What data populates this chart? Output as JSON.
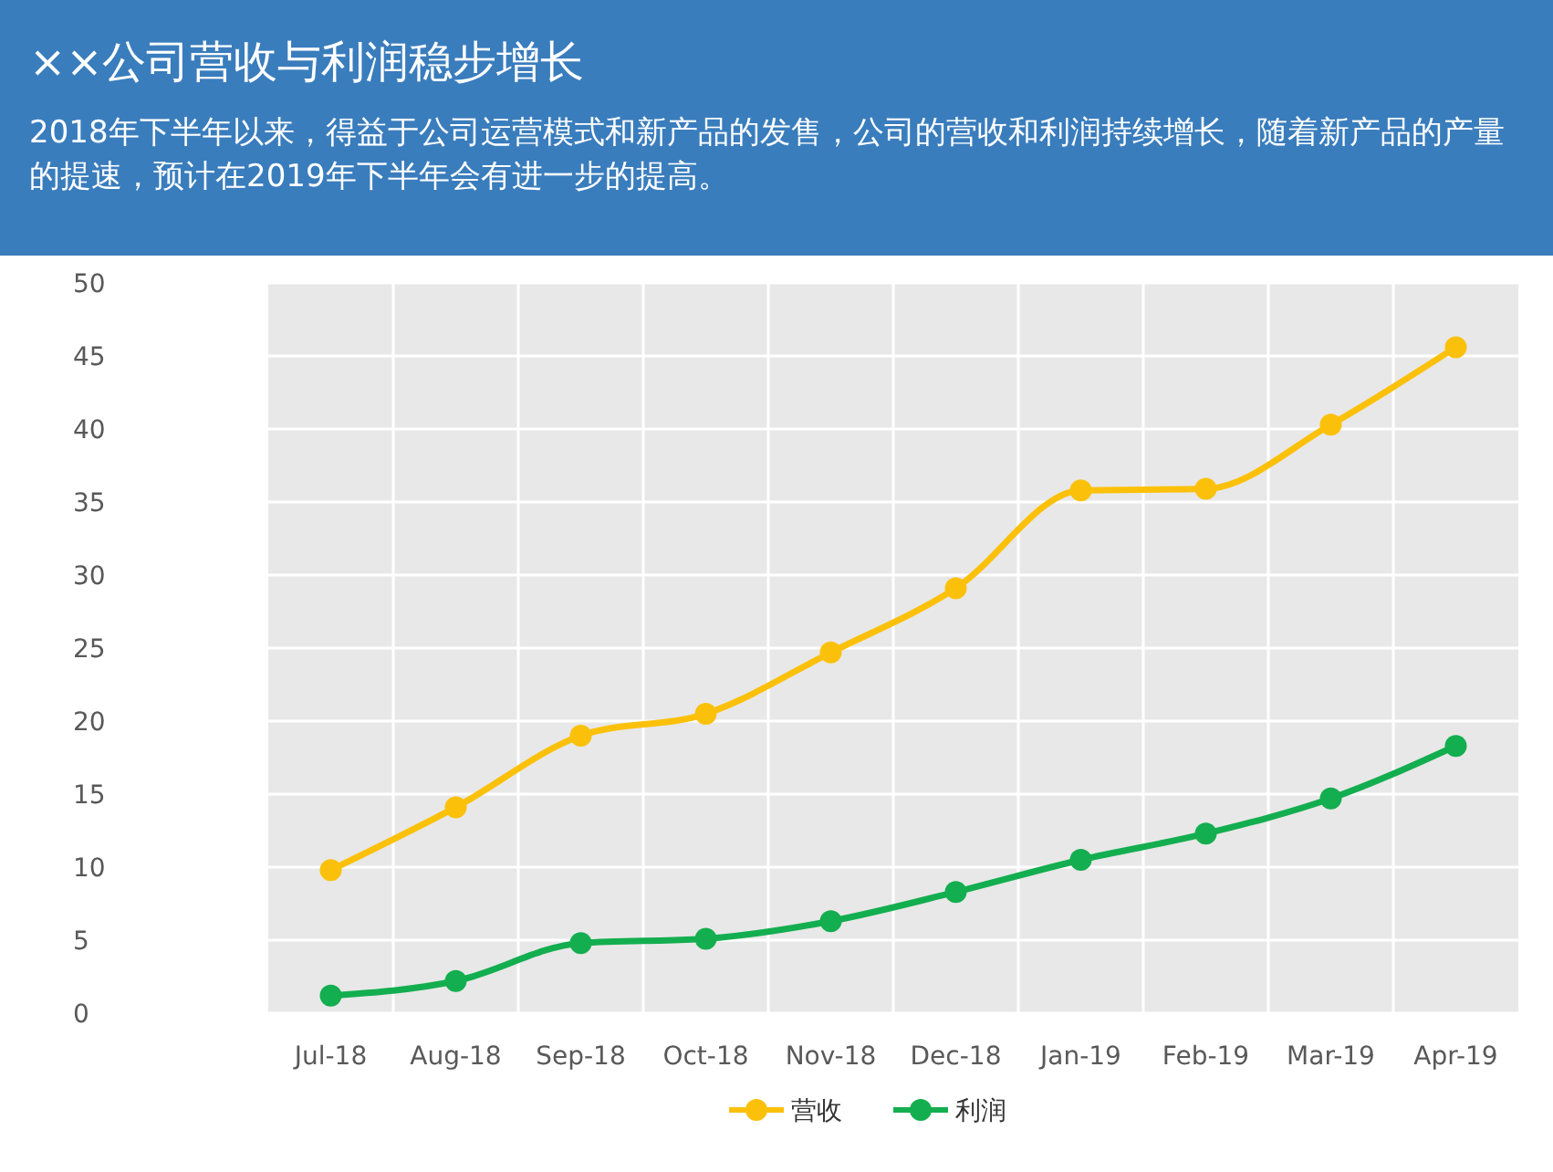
{
  "chart_data": {
    "type": "line",
    "title": "××公司营收与利润稳步增长",
    "subtitle": "2018年下半年以来，得益于公司运营模式和新产品的发售，公司的营收和利润持续增长，随着新产品的产量的提速，预计在2019年下半年会有进一步的提高。",
    "categories": [
      "Jul-18",
      "Aug-18",
      "Sep-18",
      "Oct-18",
      "Nov-18",
      "Dec-18",
      "Jan-19",
      "Feb-19",
      "Mar-19",
      "Apr-19"
    ],
    "series": [
      {
        "name": "营收",
        "color": "#fbc10a",
        "values": [
          9.8,
          14.1,
          19,
          20.5,
          24.7,
          29.1,
          35.8,
          35.9,
          40.3,
          45.6
        ]
      },
      {
        "name": "利润",
        "color": "#13ae4f",
        "values": [
          1.2,
          2.2,
          4.8,
          5.1,
          6.3,
          8.3,
          10.5,
          12.3,
          14.7,
          18.3
        ]
      }
    ],
    "ylim": [
      0,
      50
    ],
    "yticks": [
      0,
      5,
      10,
      15,
      20,
      25,
      30,
      35,
      40,
      45,
      50
    ],
    "grid": true,
    "legend": "bottom",
    "marker": "circle",
    "line_style": "solid"
  }
}
